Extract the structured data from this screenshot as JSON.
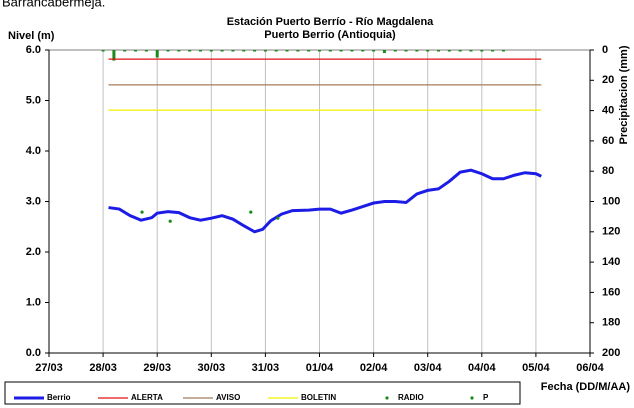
{
  "page_caption": "Barrancabermeja.",
  "chart_data": {
    "type": "line",
    "title": "Estación Puerto Berrío - Río Magdalena",
    "subtitle": "Puerto Berrio (Antioquia)",
    "y_label": "Nivel (m)",
    "y2_label": "Precipitacion (mm)",
    "x_label": "Fecha (DD/M/AA)",
    "xlim": [
      0,
      10
    ],
    "xticks": [
      {
        "value": 0,
        "label": "27/03"
      },
      {
        "value": 1,
        "label": "28/03"
      },
      {
        "value": 2,
        "label": "29/03"
      },
      {
        "value": 3,
        "label": "30/03"
      },
      {
        "value": 4,
        "label": "31/03"
      },
      {
        "value": 5,
        "label": "01/04"
      },
      {
        "value": 6,
        "label": "02/04"
      },
      {
        "value": 7,
        "label": "03/04"
      },
      {
        "value": 8,
        "label": "04/04"
      },
      {
        "value": 9,
        "label": "05/04"
      },
      {
        "value": 10,
        "label": "06/04"
      }
    ],
    "ylim": [
      0,
      6
    ],
    "yticks": [
      {
        "value": 0,
        "label": "0.0"
      },
      {
        "value": 1,
        "label": "1.0"
      },
      {
        "value": 2,
        "label": "2.0"
      },
      {
        "value": 3,
        "label": "3.0"
      },
      {
        "value": 4,
        "label": "4.0"
      },
      {
        "value": 5,
        "label": "5.0"
      },
      {
        "value": 6,
        "label": "6.0"
      }
    ],
    "y2lim": [
      0,
      200
    ],
    "y2_inverted": true,
    "y2ticks": [
      0,
      20,
      40,
      60,
      80,
      100,
      120,
      140,
      160,
      180,
      200
    ],
    "grid": "x",
    "legend": "bottom",
    "series": [
      {
        "name": "Berrio",
        "color": "#1c1ce6",
        "style": "thick-line",
        "x": [
          1.1,
          1.3,
          1.5,
          1.7,
          1.9,
          2.0,
          2.2,
          2.4,
          2.6,
          2.8,
          3.0,
          3.2,
          3.4,
          3.6,
          3.8,
          3.95,
          4.1,
          4.3,
          4.5,
          4.8,
          5.0,
          5.2,
          5.4,
          5.6,
          5.8,
          6.0,
          6.2,
          6.4,
          6.6,
          6.8,
          7.0,
          7.2,
          7.4,
          7.6,
          7.8,
          8.0,
          8.2,
          8.4,
          8.6,
          8.8,
          9.0,
          9.1
        ],
        "values": [
          2.88,
          2.85,
          2.72,
          2.63,
          2.68,
          2.77,
          2.8,
          2.78,
          2.68,
          2.63,
          2.67,
          2.72,
          2.65,
          2.52,
          2.4,
          2.45,
          2.62,
          2.75,
          2.82,
          2.83,
          2.85,
          2.85,
          2.77,
          2.83,
          2.9,
          2.97,
          3.0,
          3.0,
          2.98,
          3.15,
          3.22,
          3.25,
          3.4,
          3.58,
          3.62,
          3.55,
          3.45,
          3.45,
          3.52,
          3.57,
          3.55,
          3.5
        ]
      },
      {
        "name": "ALERTA",
        "color": "#e01010",
        "style": "line",
        "x": [
          1.1,
          9.1
        ],
        "values": [
          5.82,
          5.82
        ]
      },
      {
        "name": "AVISO",
        "color": "#a57c5a",
        "style": "line",
        "x": [
          1.1,
          9.1
        ],
        "values": [
          5.31,
          5.31
        ]
      },
      {
        "name": "BOLETIN",
        "color": "#f2f200",
        "style": "line",
        "x": [
          1.1,
          9.1
        ],
        "values": [
          4.81,
          4.81
        ]
      },
      {
        "name": "RADIO",
        "color": "#1a8a1a",
        "style": "points",
        "x": [
          1.72,
          2.24,
          3.73,
          4.23
        ],
        "values": [
          2.79,
          2.61,
          2.79,
          2.67
        ]
      },
      {
        "name": "P",
        "color": "#1a8a1a",
        "style": "bars",
        "axis": "y2",
        "x": [
          1.0,
          1.2,
          1.4,
          1.6,
          1.8,
          2.0,
          2.2,
          2.4,
          2.6,
          2.8,
          3.0,
          3.2,
          3.4,
          3.6,
          3.8,
          4.0,
          4.2,
          4.4,
          4.6,
          4.8,
          5.0,
          5.2,
          5.4,
          5.6,
          5.8,
          6.0,
          6.2,
          6.4,
          6.6,
          6.8,
          7.0,
          7.2,
          7.4,
          7.6,
          7.8,
          8.0,
          8.2,
          8.4
        ],
        "values": [
          0,
          7,
          0,
          0,
          0,
          5,
          0,
          0,
          0,
          0,
          0,
          0,
          0,
          0,
          0,
          0,
          0,
          0,
          0,
          0,
          0,
          0,
          0,
          0,
          0,
          0,
          2,
          0,
          0,
          0,
          0,
          0,
          0,
          0,
          0,
          0,
          0,
          0
        ]
      }
    ]
  }
}
